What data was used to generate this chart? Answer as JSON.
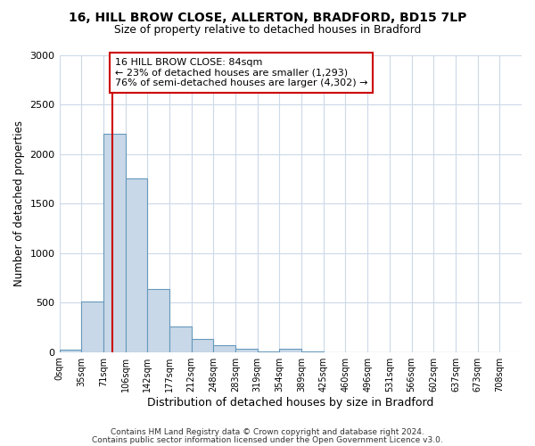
{
  "title1": "16, HILL BROW CLOSE, ALLERTON, BRADFORD, BD15 7LP",
  "title2": "Size of property relative to detached houses in Bradford",
  "xlabel": "Distribution of detached houses by size in Bradford",
  "ylabel": "Number of detached properties",
  "bin_labels": [
    "0sqm",
    "35sqm",
    "71sqm",
    "106sqm",
    "142sqm",
    "177sqm",
    "212sqm",
    "248sqm",
    "283sqm",
    "319sqm",
    "354sqm",
    "389sqm",
    "425sqm",
    "460sqm",
    "496sqm",
    "531sqm",
    "566sqm",
    "602sqm",
    "637sqm",
    "673sqm",
    "708sqm"
  ],
  "bar_values": [
    20,
    510,
    2200,
    1750,
    640,
    260,
    130,
    70,
    30,
    5,
    30,
    5,
    0,
    0,
    0,
    0,
    0,
    0,
    0,
    0
  ],
  "bar_color": "#c8d8e8",
  "bar_edge_color": "#7aaan0",
  "property_size": 84,
  "vline_color": "#cc0000",
  "annotation_line1": "16 HILL BROW CLOSE: 84sqm",
  "annotation_line2": "← 23% of detached houses are smaller (1,293)",
  "annotation_line3": "76% of semi-detached houses are larger (4,302) →",
  "annotation_box_color": "#ffffff",
  "annotation_box_edge": "#cc0000",
  "ylim": [
    0,
    3000
  ],
  "yticks": [
    0,
    500,
    1000,
    1500,
    2000,
    2500,
    3000
  ],
  "footer1": "Contains HM Land Registry data © Crown copyright and database right 2024.",
  "footer2": "Contains public sector information licensed under the Open Government Licence v3.0.",
  "background_color": "#ffffff",
  "grid_color": "#ccd9e8"
}
